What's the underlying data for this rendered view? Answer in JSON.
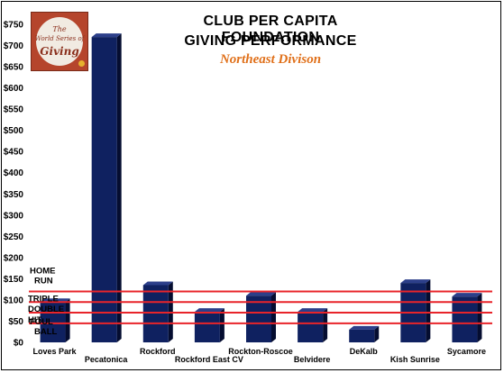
{
  "chart_data": {
    "type": "bar",
    "title": "CLUB PER CAPITA FOUNDATION",
    "title_line2": "GIVING PERFORMANCE",
    "subtitle": "Northeast Divison",
    "xlabel": "",
    "ylabel": "",
    "ylim": [
      0,
      750
    ],
    "ytick_step": 50,
    "ytick_prefix": "$",
    "grid": false,
    "legend": "none",
    "categories": [
      "Loves Park",
      "Pecatonica",
      "Rockford",
      "Rockford East CV",
      "Rockton-Roscoe",
      "Belvidere",
      "DeKalb",
      "Kish Sunrise",
      "Sycamore"
    ],
    "values": [
      95,
      720,
      135,
      72,
      110,
      72,
      30,
      140,
      108
    ],
    "bar_color": "#0f2160",
    "reference_lines": [
      {
        "label": "HOME RUN",
        "value": 120
      },
      {
        "label": "TRIPLE",
        "value": 95
      },
      {
        "label": "DOUBLE",
        "value": 70
      },
      {
        "label": "HIT",
        "value": 45
      },
      {
        "label": "FOUL BALL",
        "value": 0
      }
    ],
    "reference_color": "#e8242a",
    "logo_text": [
      "The",
      "World Series of",
      "Giving"
    ]
  }
}
